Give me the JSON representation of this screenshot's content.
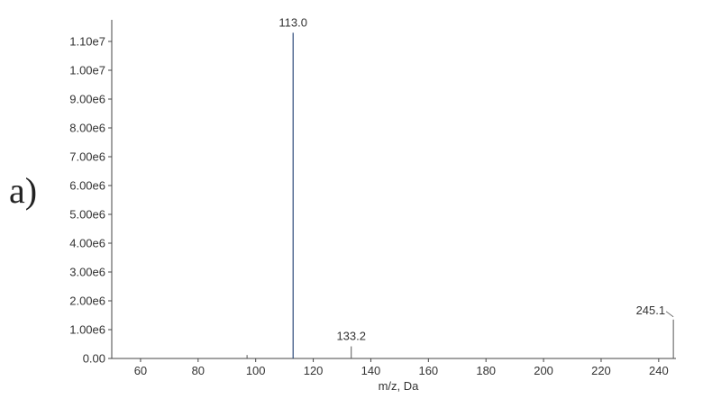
{
  "panel_label": "a)",
  "chart_data": {
    "type": "bar",
    "xlabel": "m/z, Da",
    "ylabel": "",
    "xlim": [
      50,
      246
    ],
    "ylim": [
      0,
      11500000
    ],
    "x_ticks": [
      60,
      80,
      100,
      120,
      140,
      160,
      180,
      200,
      220,
      240
    ],
    "x_tick_labels": [
      "60",
      "80",
      "100",
      "120",
      "140",
      "160",
      "180",
      "200",
      "220",
      "240"
    ],
    "y_ticks": [
      0,
      1000000,
      2000000,
      3000000,
      4000000,
      5000000,
      6000000,
      7000000,
      8000000,
      9000000,
      10000000,
      11000000
    ],
    "y_tick_labels": [
      "0.00",
      "1.00e6",
      "2.00e6",
      "3.00e6",
      "4.00e6",
      "5.00e6",
      "6.00e6",
      "7.00e6",
      "8.00e6",
      "9.00e6",
      "1.00e7",
      "1.10e7"
    ],
    "grid": false,
    "series": [
      {
        "x": [
          97.0,
          113.0,
          133.2,
          245.1
        ],
        "y": [
          120000,
          11300000,
          420000,
          1350000
        ],
        "labels": [
          "",
          "113.0",
          "133.2",
          "245.1"
        ]
      }
    ],
    "colors": {
      "main_peak": "#2e4a7a",
      "minor_peak": "#555555",
      "axis": "#444444"
    }
  }
}
